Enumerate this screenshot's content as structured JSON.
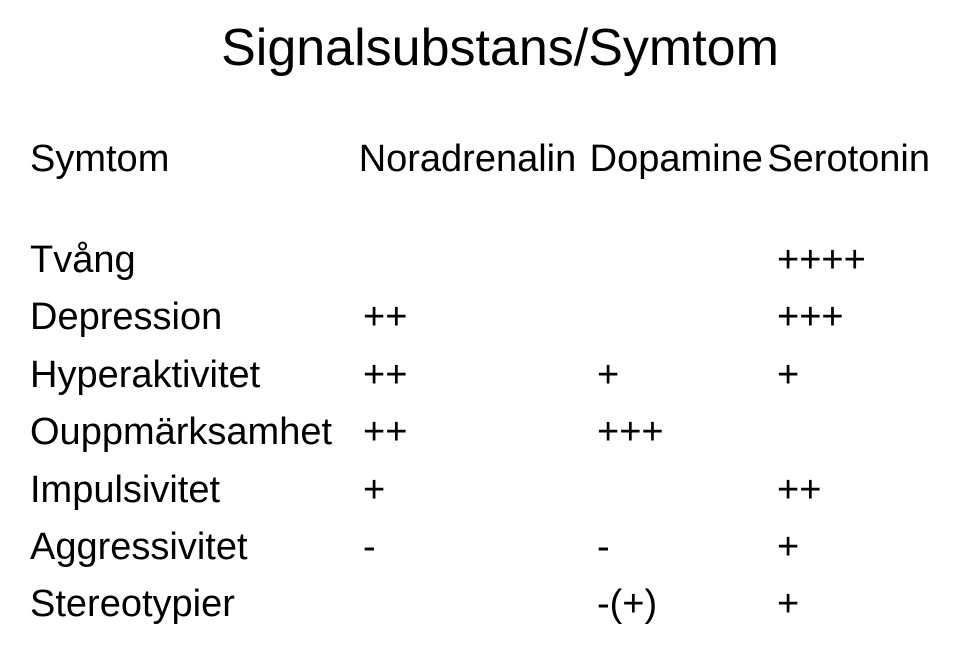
{
  "title": "Signalsubstans/Symtom",
  "headers": {
    "col1": "Symtom",
    "col2": "Noradrenalin",
    "col3": "Dopamine",
    "col4": "Serotonin"
  },
  "rows": [
    {
      "symptom": "Tvång",
      "nora": "",
      "dopa": "",
      "sero": "++++"
    },
    {
      "symptom": "Depression",
      "nora": "++",
      "dopa": "",
      "sero": "+++"
    },
    {
      "symptom": "Hyperaktivitet",
      "nora": "++",
      "dopa": "+",
      "sero": "+"
    },
    {
      "symptom": "Ouppmärksamhet",
      "nora": "++",
      "dopa": "+++",
      "sero": ""
    },
    {
      "symptom": "Impulsivitet",
      "nora": "+",
      "dopa": "",
      "sero": "++"
    },
    {
      "symptom": "Aggressivitet",
      "nora": "-",
      "dopa": "-",
      "sero": "+"
    },
    {
      "symptom": "Stereotypier",
      "nora": "",
      "dopa": "-(+)",
      "sero": "+"
    }
  ],
  "styling": {
    "background_color": "#ffffff",
    "text_color": "#000000",
    "title_fontsize": 52,
    "body_fontsize": 38,
    "font_family": "Arial"
  }
}
